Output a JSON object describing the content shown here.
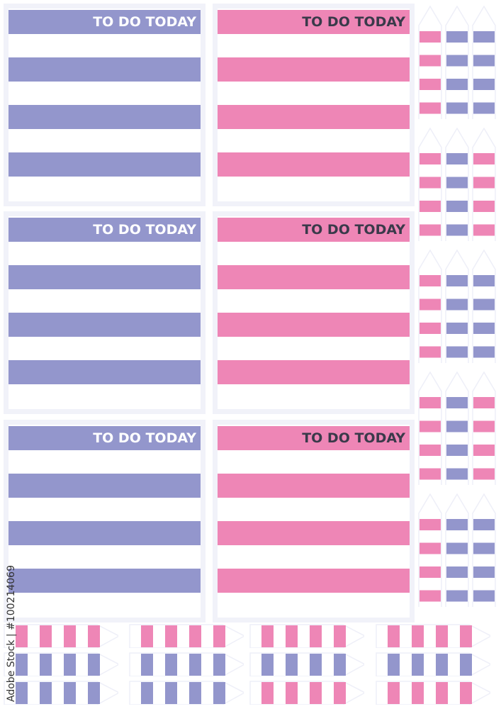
{
  "colors": {
    "blue": "#9396cc",
    "pink": "#ee86b6",
    "border": "#eeeff8",
    "title_on_blue": "#ffffff",
    "title_on_pink": "#3a3a4a"
  },
  "cards": [
    {
      "title": "TO DO TODAY",
      "color": "blue"
    },
    {
      "title": "TO DO TODAY",
      "color": "pink"
    },
    {
      "title": "TO DO TODAY",
      "color": "blue"
    },
    {
      "title": "TO DO TODAY",
      "color": "pink"
    },
    {
      "title": "TO DO TODAY",
      "color": "blue"
    },
    {
      "title": "TO DO TODAY",
      "color": "pink"
    }
  ],
  "side_tag_groups": [
    [
      "pink",
      "blue",
      "blue"
    ],
    [
      "pink",
      "blue",
      "pink"
    ],
    [
      "pink",
      "blue",
      "blue"
    ],
    [
      "pink",
      "blue",
      "pink"
    ],
    [
      "pink",
      "blue",
      "blue"
    ]
  ],
  "bottom_tag_groups": [
    [
      "pink",
      "blue",
      "blue"
    ],
    [
      "pink",
      "blue",
      "blue"
    ],
    [
      "pink",
      "blue",
      "pink"
    ],
    [
      "pink",
      "blue",
      "pink"
    ]
  ],
  "watermark": "Adobe Stock | #100214069"
}
